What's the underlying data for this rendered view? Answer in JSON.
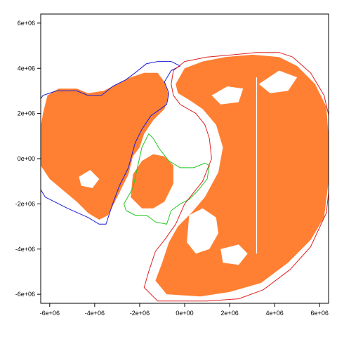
{
  "chart_data": {
    "type": "map",
    "title": "",
    "xlabel": "",
    "ylabel": "",
    "xlim": [
      -6400000,
      6400000
    ],
    "ylim": [
      -6400000,
      6400000
    ],
    "x_ticks": [
      -6000000,
      -4000000,
      -2000000,
      0,
      2000000,
      4000000,
      6000000
    ],
    "x_tick_labels": [
      "-6e+06",
      "-4e+06",
      "-2e+06",
      "0e+00",
      "2e+06",
      "4e+06",
      "6e+06"
    ],
    "y_ticks": [
      -6000000,
      -4000000,
      -2000000,
      0,
      2000000,
      4000000,
      6000000
    ],
    "y_tick_labels": [
      "-6e+06",
      "-4e+06",
      "-2e+06",
      "0e+00",
      "2e+06",
      "4e+06",
      "6e+06"
    ],
    "colors": {
      "land": "#ff8033",
      "region_blue": "#1f1fd6",
      "region_green": "#22c722",
      "region_red": "#e02020",
      "frame": "#000000"
    },
    "regions": [
      {
        "color": "#1f1fd6",
        "outline": [
          [
            -6500000,
            2500000
          ],
          [
            -6300000,
            2800000
          ],
          [
            -5700000,
            3000000
          ],
          [
            -4800000,
            3000000
          ],
          [
            -4300000,
            2800000
          ],
          [
            -3700000,
            2800000
          ],
          [
            -3200000,
            3200000
          ],
          [
            -2600000,
            3500000
          ],
          [
            -2200000,
            3800000
          ],
          [
            -1700000,
            4200000
          ],
          [
            -1200000,
            4300000
          ],
          [
            -600000,
            4300000
          ],
          [
            -200000,
            4100000
          ],
          [
            -600000,
            3900000
          ],
          [
            -900000,
            3400000
          ],
          [
            -700000,
            2900000
          ],
          [
            -800000,
            2400000
          ],
          [
            -1500000,
            1900000
          ],
          [
            -1900000,
            1300000
          ],
          [
            -2200000,
            700000
          ],
          [
            -2500000,
            -400000
          ],
          [
            -2900000,
            -1200000
          ],
          [
            -3200000,
            -2000000
          ],
          [
            -3500000,
            -2900000
          ],
          [
            -3800000,
            -2900000
          ],
          [
            -4300000,
            -2600000
          ],
          [
            -5200000,
            -2200000
          ],
          [
            -6200000,
            -1700000
          ],
          [
            -6500000,
            -1200000
          ]
        ]
      },
      {
        "color": "#22c722",
        "outline": [
          [
            -1600000,
            1100000
          ],
          [
            -1400000,
            900000
          ],
          [
            -1100000,
            400000
          ],
          [
            -700000,
            -100000
          ],
          [
            -200000,
            -400000
          ],
          [
            400000,
            -400000
          ],
          [
            900000,
            -200000
          ],
          [
            1100000,
            -300000
          ],
          [
            1000000,
            -900000
          ],
          [
            600000,
            -1400000
          ],
          [
            200000,
            -1800000
          ],
          [
            -200000,
            -2000000
          ],
          [
            -600000,
            -2300000
          ],
          [
            -800000,
            -2900000
          ],
          [
            -1300000,
            -2800000
          ],
          [
            -1700000,
            -2500000
          ],
          [
            -2200000,
            -2500000
          ],
          [
            -2600000,
            -2300000
          ],
          [
            -2700000,
            -2000000
          ],
          [
            -2300000,
            -1300000
          ],
          [
            -2100000,
            -400000
          ],
          [
            -1900000,
            500000
          ]
        ]
      },
      {
        "color": "#e02020",
        "outline": [
          [
            -600000,
            3300000
          ],
          [
            -500000,
            3900000
          ],
          [
            0,
            4300000
          ],
          [
            1000000,
            4500000
          ],
          [
            2200000,
            4600000
          ],
          [
            3200000,
            4700000
          ],
          [
            4200000,
            4700000
          ],
          [
            4800000,
            4500000
          ],
          [
            5600000,
            3800000
          ],
          [
            6200000,
            2800000
          ],
          [
            6500000,
            1500000
          ],
          [
            6500000,
            -600000
          ],
          [
            6300000,
            -2400000
          ],
          [
            5600000,
            -3900000
          ],
          [
            4700000,
            -4900000
          ],
          [
            3500000,
            -5800000
          ],
          [
            2400000,
            -6200000
          ],
          [
            1000000,
            -6300000
          ],
          [
            -100000,
            -6300000
          ],
          [
            -1200000,
            -6300000
          ],
          [
            -1800000,
            -5700000
          ],
          [
            -1600000,
            -5000000
          ],
          [
            -1300000,
            -4100000
          ],
          [
            -900000,
            -3600000
          ],
          [
            -400000,
            -2900000
          ],
          [
            0,
            -2000000
          ],
          [
            800000,
            -1000000
          ],
          [
            1200000,
            0
          ],
          [
            1100000,
            900000
          ],
          [
            900000,
            1500000
          ],
          [
            500000,
            2000000
          ],
          [
            -200000,
            2400000
          ],
          [
            -500000,
            2800000
          ]
        ]
      }
    ],
    "land_masses": [
      [
        [
          -6400000,
          1400000
        ],
        [
          -6300000,
          2000000
        ],
        [
          -6100000,
          2800000
        ],
        [
          -5600000,
          3100000
        ],
        [
          -4800000,
          3100000
        ],
        [
          -4300000,
          2900000
        ],
        [
          -3600000,
          3000000
        ],
        [
          -3000000,
          3300000
        ],
        [
          -2400000,
          3600000
        ],
        [
          -1800000,
          3800000
        ],
        [
          -1200000,
          3800000
        ],
        [
          -900000,
          3400000
        ],
        [
          -700000,
          2800000
        ],
        [
          -900000,
          2200000
        ],
        [
          -1400000,
          1700000
        ],
        [
          -1800000,
          1100000
        ],
        [
          -2000000,
          500000
        ],
        [
          -2300000,
          100000
        ],
        [
          -2500000,
          -700000
        ],
        [
          -2800000,
          -1300000
        ],
        [
          -3100000,
          -1900000
        ],
        [
          -3400000,
          -2500000
        ],
        [
          -3800000,
          -2700000
        ],
        [
          -4300000,
          -2400000
        ],
        [
          -4800000,
          -1900000
        ],
        [
          -5400000,
          -1400000
        ],
        [
          -6000000,
          -900000
        ],
        [
          -6400000,
          -300000
        ]
      ],
      [
        [
          -2400000,
          -1700000
        ],
        [
          -2300000,
          -700000
        ],
        [
          -1900000,
          -100000
        ],
        [
          -1400000,
          200000
        ],
        [
          -900000,
          100000
        ],
        [
          -500000,
          -300000
        ],
        [
          -500000,
          -1100000
        ],
        [
          -900000,
          -1900000
        ],
        [
          -1400000,
          -2200000
        ],
        [
          -1900000,
          -2200000
        ]
      ],
      [
        [
          -400000,
          3300000
        ],
        [
          0,
          4000000
        ],
        [
          800000,
          4300000
        ],
        [
          1800000,
          4500000
        ],
        [
          3000000,
          4600000
        ],
        [
          4200000,
          4500000
        ],
        [
          5000000,
          4100000
        ],
        [
          5800000,
          3300000
        ],
        [
          6300000,
          2300000
        ],
        [
          6400000,
          1000000
        ],
        [
          6400000,
          -1000000
        ],
        [
          6200000,
          -2600000
        ],
        [
          5600000,
          -3600000
        ],
        [
          4600000,
          -4600000
        ],
        [
          3400000,
          -5500000
        ],
        [
          2000000,
          -5900000
        ],
        [
          700000,
          -6100000
        ],
        [
          -800000,
          -6000000
        ],
        [
          -1300000,
          -5400000
        ],
        [
          -1000000,
          -4600000
        ],
        [
          -700000,
          -3700000
        ],
        [
          -300000,
          -3000000
        ],
        [
          300000,
          -2400000
        ],
        [
          900000,
          -1700000
        ],
        [
          1500000,
          -600000
        ],
        [
          1700000,
          500000
        ],
        [
          1400000,
          1500000
        ],
        [
          800000,
          2200000
        ],
        [
          200000,
          2600000
        ],
        [
          -300000,
          2900000
        ]
      ]
    ],
    "water_cutouts": [
      [
        [
          200000,
          -2500000
        ],
        [
          800000,
          -2200000
        ],
        [
          1400000,
          -2600000
        ],
        [
          1500000,
          -3300000
        ],
        [
          1100000,
          -4000000
        ],
        [
          500000,
          -4200000
        ],
        [
          100000,
          -3700000
        ]
      ],
      [
        [
          1600000,
          -4000000
        ],
        [
          2400000,
          -3800000
        ],
        [
          2800000,
          -4200000
        ],
        [
          2400000,
          -4700000
        ],
        [
          1700000,
          -4600000
        ]
      ],
      [
        [
          1200000,
          2800000
        ],
        [
          1900000,
          3200000
        ],
        [
          2600000,
          3100000
        ],
        [
          2400000,
          2500000
        ],
        [
          1600000,
          2400000
        ]
      ],
      [
        [
          3300000,
          3300000
        ],
        [
          4200000,
          3900000
        ],
        [
          5000000,
          3600000
        ],
        [
          4600000,
          3000000
        ],
        [
          3800000,
          2900000
        ]
      ],
      [
        [
          -4700000,
          -800000
        ],
        [
          -4200000,
          -500000
        ],
        [
          -3800000,
          -900000
        ],
        [
          -4100000,
          -1300000
        ],
        [
          -4600000,
          -1200000
        ]
      ]
    ],
    "meridian_line": {
      "x": 3200000,
      "y_from": -4200000,
      "y_to": 3600000
    }
  }
}
